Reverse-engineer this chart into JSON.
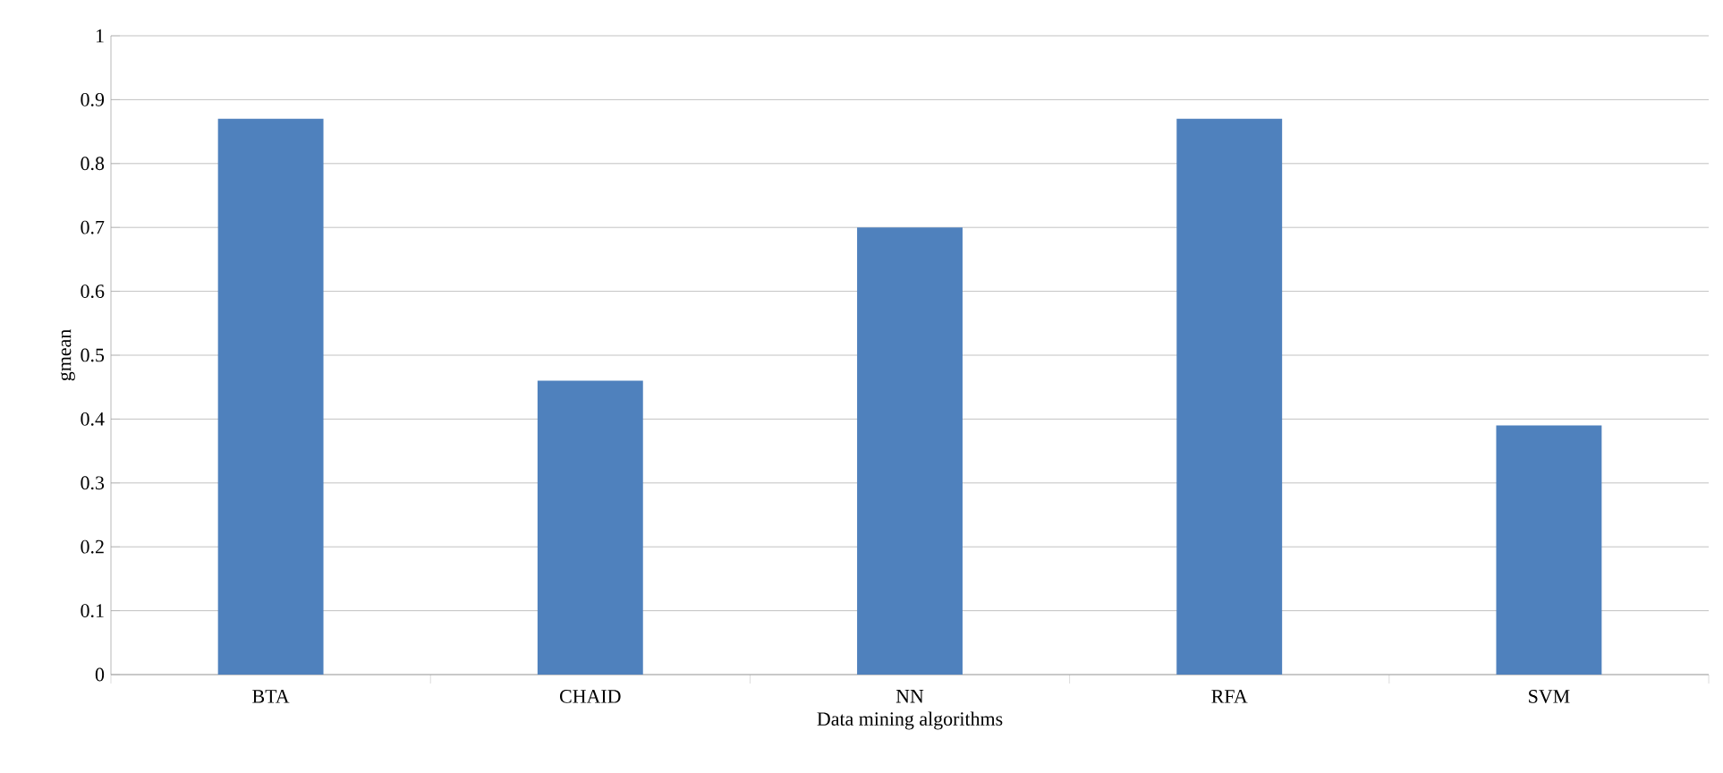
{
  "chart_data": {
    "type": "bar",
    "xlabel": "Data mining algorithms",
    "ylabel": "gmean",
    "categories": [
      "BTA",
      "CHAID",
      "NN",
      "RFA",
      "SVM"
    ],
    "values": [
      0.87,
      0.46,
      0.7,
      0.87,
      0.39
    ],
    "color": "#4f81bd",
    "ylim": [
      0,
      1
    ],
    "yticks": [
      0,
      0.1,
      0.2,
      0.3,
      0.4,
      0.5,
      0.6,
      0.7,
      0.8,
      0.9,
      1
    ],
    "grid": "y"
  }
}
